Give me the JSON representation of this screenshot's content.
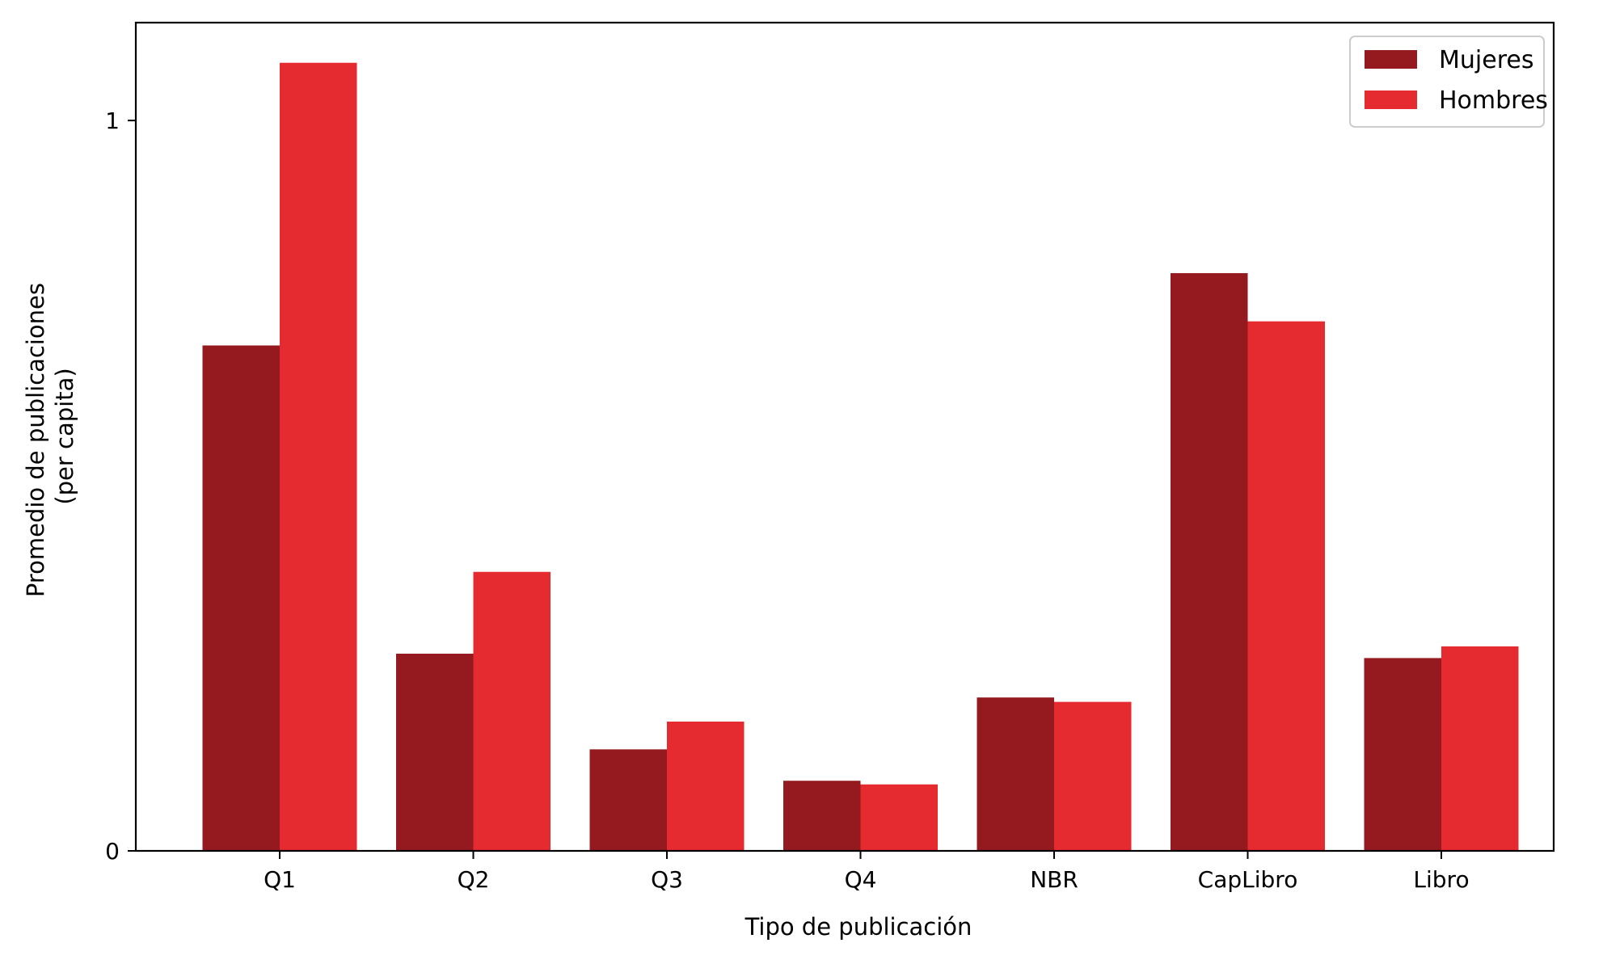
{
  "chart_data": {
    "type": "bar",
    "categories": [
      "Q1",
      "Q2",
      "Q3",
      "Q4",
      "NBR",
      "CapLibro",
      "Libro"
    ],
    "series": [
      {
        "name": "Mujeres",
        "color": "#951a1f",
        "values": [
          0.692,
          0.27,
          0.139,
          0.096,
          0.21,
          0.791,
          0.264
        ]
      },
      {
        "name": "Hombres",
        "color": "#e52b2f",
        "values": [
          1.079,
          0.382,
          0.177,
          0.091,
          0.204,
          0.725,
          0.28
        ]
      }
    ],
    "xlabel": "Tipo de publicación",
    "ylabel_lines": [
      "Promedio de publicaciones",
      "(per capita)"
    ],
    "ylim": [
      0,
      1.134
    ],
    "yticks": [
      {
        "value": 0,
        "label": "0"
      },
      {
        "value": 1,
        "label": "1"
      }
    ],
    "grid": false,
    "legend_position": "top-right"
  }
}
